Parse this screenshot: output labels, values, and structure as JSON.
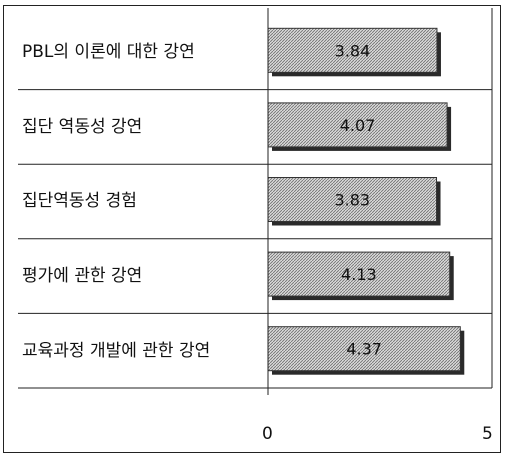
{
  "chart_data": {
    "type": "bar",
    "orientation": "horizontal",
    "categories": [
      "PBL의 이론에 대한 강연",
      "집단 역동성 강연",
      "집단역동성 경험",
      "평가에 관한 강연",
      "교육과정 개발에 관한 강연"
    ],
    "values": [
      3.84,
      4.07,
      3.83,
      4.13,
      4.37
    ],
    "data_labels": [
      "3.84",
      "4.07",
      "3.83",
      "4.13",
      "4.37"
    ],
    "title": "",
    "xlabel": "",
    "ylabel": "",
    "xlim": [
      0,
      5
    ],
    "x_ticks": [
      "0",
      "5"
    ],
    "grid": false,
    "legend": "none",
    "bar_fill": "#a8a8a8",
    "bar_shadow": "#2a2a2a"
  }
}
